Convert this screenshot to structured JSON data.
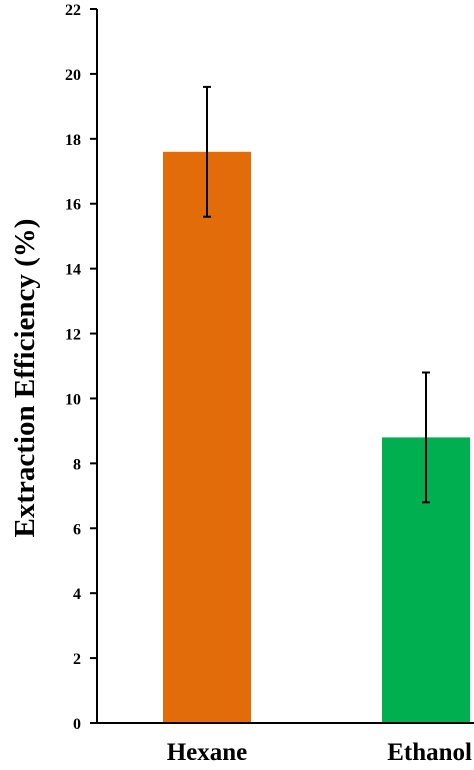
{
  "chart_data": {
    "type": "bar",
    "categories": [
      "Hexane",
      "Ethanol"
    ],
    "values": [
      17.6,
      8.8
    ],
    "error": [
      2.0,
      2.0
    ],
    "colors": [
      "#E36C0A",
      "#00B050"
    ],
    "title": "",
    "xlabel": "",
    "ylabel": "Extraction Efficiency (%)",
    "ylim": [
      0,
      22
    ],
    "yticks": [
      0,
      2,
      4,
      6,
      8,
      10,
      12,
      14,
      16,
      18,
      20,
      22
    ],
    "grid": false,
    "legend": "none"
  }
}
